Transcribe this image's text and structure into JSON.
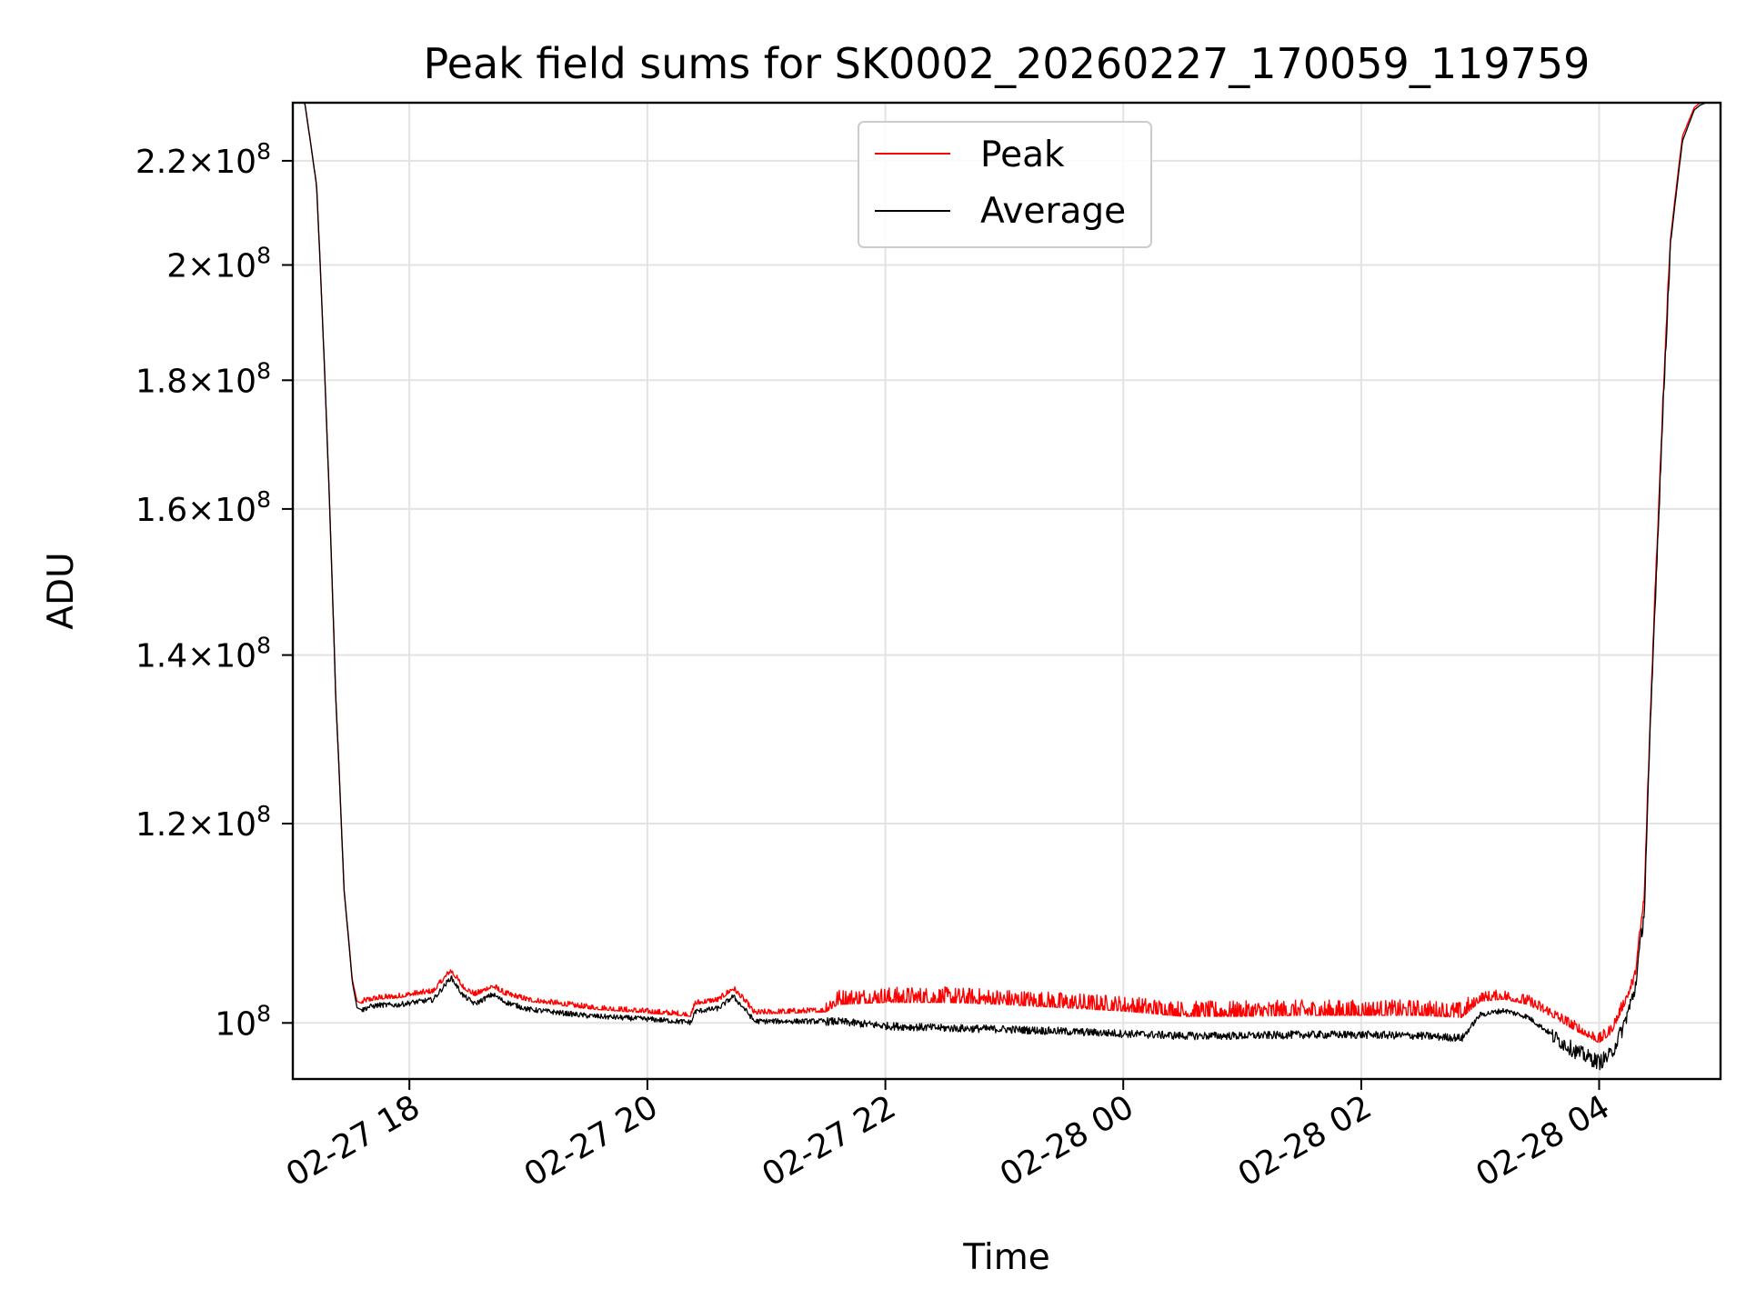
{
  "chart_data": {
    "type": "line",
    "title": "Peak field sums for SK0002_20260227_170059_119759",
    "xlabel": "Time",
    "ylabel": "ADU",
    "yscale": "log",
    "ylim": [
      95000000,
      232000000
    ],
    "xlim_hours": [
      17.02,
      29.02
    ],
    "grid": true,
    "legend_position": "upper-center",
    "x_ticks": [
      {
        "hour": 18,
        "label": "02-27 18"
      },
      {
        "hour": 20,
        "label": "02-27 20"
      },
      {
        "hour": 22,
        "label": "02-27 22"
      },
      {
        "hour": 24,
        "label": "02-28 00"
      },
      {
        "hour": 26,
        "label": "02-28 02"
      },
      {
        "hour": 28,
        "label": "02-28 04"
      }
    ],
    "y_ticks": [
      {
        "value": 220000000,
        "mant": "2.2",
        "exp": "8"
      },
      {
        "value": 200000000,
        "mant": "2",
        "exp": "8"
      },
      {
        "value": 180000000,
        "mant": "1.8",
        "exp": "8"
      },
      {
        "value": 160000000,
        "mant": "1.6",
        "exp": "8"
      },
      {
        "value": 140000000,
        "mant": "1.4",
        "exp": "8"
      },
      {
        "value": 120000000,
        "mant": "1.2",
        "exp": "8"
      },
      {
        "value": 100000000,
        "mant": "",
        "exp": "8"
      }
    ],
    "series": [
      {
        "name": "Peak",
        "color": "#ff0000",
        "x_hours": [
          17.02,
          17.12,
          17.22,
          17.3,
          17.38,
          17.45,
          17.52,
          17.56,
          17.6,
          17.65,
          17.75,
          17.9,
          18.0,
          18.2,
          18.35,
          18.45,
          18.55,
          18.7,
          18.8,
          19.0,
          19.5,
          20.0,
          20.37,
          20.4,
          20.6,
          20.72,
          20.82,
          20.9,
          21.5,
          21.6,
          22.0,
          22.5,
          23.0,
          23.5,
          24.0,
          24.5,
          25.0,
          25.5,
          26.0,
          26.5,
          26.85,
          27.0,
          27.2,
          27.4,
          27.6,
          27.8,
          28.0,
          28.1,
          28.2,
          28.3,
          28.38,
          28.42,
          28.5,
          28.6,
          28.7,
          28.8,
          28.85,
          28.9,
          28.95,
          29.02
        ],
        "values": [
          232000000,
          232000000,
          215000000,
          175000000,
          135000000,
          113000000,
          104000000,
          102000000,
          101800000,
          102000000,
          102200000,
          102300000,
          102500000,
          102800000,
          104800000,
          103200000,
          102500000,
          103300000,
          102600000,
          102000000,
          101300000,
          100900000,
          100600000,
          101700000,
          102000000,
          103100000,
          101900000,
          100800000,
          101000000,
          101700000,
          101900000,
          101900000,
          101700000,
          101400000,
          101100000,
          100600000,
          100600000,
          100700000,
          100700000,
          100700000,
          100500000,
          102000000,
          102200000,
          101700000,
          100600000,
          99300000,
          98200000,
          99000000,
          101300000,
          104000000,
          112000000,
          128000000,
          160000000,
          205000000,
          225000000,
          231000000,
          232000000,
          232000000,
          232000000,
          232000000
        ]
      },
      {
        "name": "Average",
        "color": "#000000",
        "x_hours": [
          17.02,
          17.12,
          17.22,
          17.3,
          17.38,
          17.45,
          17.52,
          17.56,
          17.6,
          17.65,
          17.75,
          17.9,
          18.0,
          18.2,
          18.35,
          18.45,
          18.55,
          18.7,
          18.8,
          19.0,
          19.5,
          20.0,
          20.37,
          20.4,
          20.6,
          20.72,
          20.82,
          20.9,
          21.5,
          21.6,
          22.0,
          22.5,
          23.0,
          23.5,
          24.0,
          24.5,
          25.0,
          25.5,
          26.0,
          26.5,
          26.85,
          27.0,
          27.2,
          27.4,
          27.6,
          27.8,
          28.0,
          28.1,
          28.2,
          28.3,
          28.38,
          28.42,
          28.5,
          28.6,
          28.7,
          28.8,
          28.85,
          28.9,
          28.95,
          29.02
        ],
        "values": [
          232000000,
          232000000,
          215000000,
          175000000,
          135000000,
          113000000,
          103800000,
          101400000,
          101200000,
          101500000,
          101700000,
          101700000,
          101900000,
          102200000,
          104300000,
          102600000,
          101800000,
          102700000,
          102000000,
          101300000,
          100700000,
          100400000,
          100100000,
          101100000,
          101400000,
          102500000,
          101300000,
          100200000,
          100200000,
          100200000,
          99800000,
          99600000,
          99500000,
          99300000,
          99100000,
          98900000,
          98900000,
          99000000,
          99000000,
          98900000,
          98700000,
          100800000,
          101200000,
          100600000,
          99000000,
          97600000,
          96600000,
          97300000,
          99700000,
          103200000,
          111000000,
          127000000,
          159000000,
          204000000,
          224000000,
          230500000,
          231500000,
          232000000,
          232000000,
          232000000
        ]
      }
    ]
  }
}
